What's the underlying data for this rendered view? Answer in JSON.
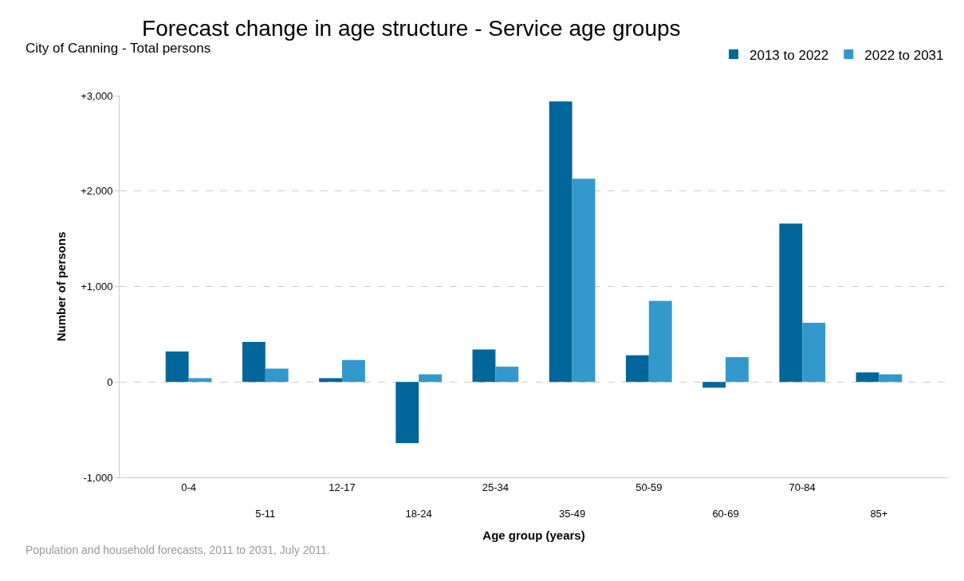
{
  "chart_data": {
    "type": "bar",
    "title": "Forecast change in age structure - Service age groups",
    "subtitle": "City of Canning - Total persons",
    "xlabel": "Age group (years)",
    "ylabel": "Number of persons",
    "categories": [
      "0-4",
      "5-11",
      "12-17",
      "18-24",
      "25-34",
      "35-49",
      "50-59",
      "60-69",
      "70-84",
      "85+"
    ],
    "series": [
      {
        "name": "2013 to 2022",
        "color": "#01669a",
        "values": [
          320,
          420,
          40,
          -640,
          340,
          2940,
          280,
          -60,
          1660,
          100
        ]
      },
      {
        "name": "2022 to 2031",
        "color": "#3399cc",
        "values": [
          40,
          140,
          230,
          80,
          160,
          2130,
          850,
          260,
          620,
          80
        ]
      }
    ],
    "ylim": [
      -1000,
      3000
    ],
    "yticks": [
      {
        "value": -1000,
        "label": "-1,000"
      },
      0,
      {
        "value": 1000,
        "label": "+1,000"
      },
      {
        "value": 2000,
        "label": "+2,000"
      },
      {
        "value": 3000,
        "label": "+3,000"
      }
    ],
    "grid": "y",
    "legend": "top right",
    "annotations": [
      "Population and household forecasts, 2011 to 2031, July 2011."
    ]
  }
}
